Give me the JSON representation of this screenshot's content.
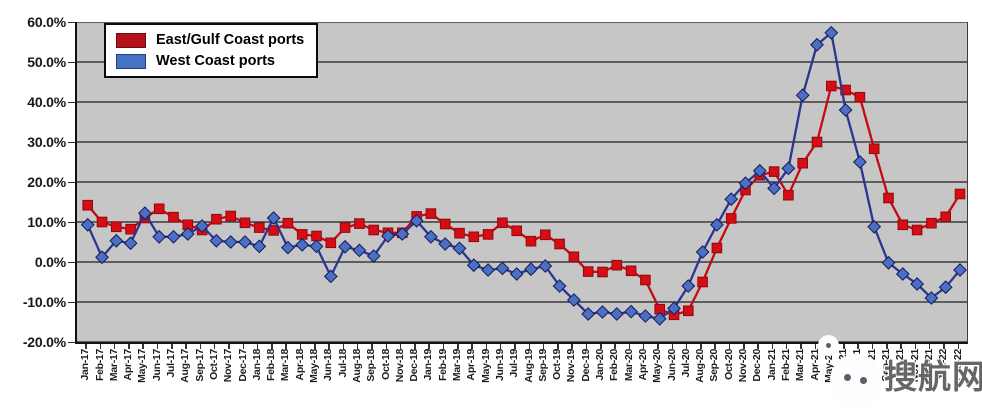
{
  "chart_data": {
    "type": "line",
    "title": "",
    "xlabel": "",
    "ylabel": "",
    "ylim": [
      -20,
      60
    ],
    "grid": true,
    "legend_position": "top-left",
    "y_ticks": [
      "60.0%",
      "50.0%",
      "40.0%",
      "30.0%",
      "20.0%",
      "10.0%",
      "0.0%",
      "-10.0%",
      "-20.0%"
    ],
    "categories": [
      "Jan-17",
      "Feb-17",
      "Mar-17",
      "Apr-17",
      "May-17",
      "Jun-17",
      "Jul-17",
      "Aug-17",
      "Sep-17",
      "Oct-17",
      "Nov-17",
      "Dec-17",
      "Jan-18",
      "Feb-18",
      "Mar-18",
      "Apr-18",
      "May-18",
      "Jun-18",
      "Jul-18",
      "Aug-18",
      "Sep-18",
      "Oct-18",
      "Nov-18",
      "Dec-18",
      "Jan-19",
      "Feb-19",
      "Mar-19",
      "Apr-19",
      "May-19",
      "Jun-19",
      "Jul-19",
      "Aug-19",
      "Sep-19",
      "Oct-19",
      "Nov-19",
      "Dec-19",
      "Jan-20",
      "Feb-20",
      "Mar-20",
      "Apr-20",
      "May-20",
      "Jun-20",
      "Jul-20",
      "Aug-20",
      "Sep-20",
      "Oct-20",
      "Nov-20",
      "Dec-20",
      "Jan-21",
      "Feb-21",
      "Mar-21",
      "Apr-21",
      "May-21",
      "Jun-21",
      "Jul-21",
      "Aug-21",
      "Sep-21",
      "Oct-21",
      "Nov-21",
      "Dec-21",
      "Jan-22",
      "Feb-22"
    ],
    "series": [
      {
        "name": "East/Gulf Coast ports",
        "marker": "square",
        "line_color": "#c40a14",
        "marker_fill": "#d60d15",
        "marker_stroke": "#8e0a0f",
        "values": [
          14.2,
          10.0,
          8.8,
          8.2,
          11.0,
          13.3,
          11.2,
          9.3,
          8.0,
          10.7,
          11.5,
          9.8,
          8.6,
          7.9,
          9.7,
          6.9,
          6.5,
          4.8,
          8.6,
          9.6,
          8.0,
          7.3,
          7.3,
          11.4,
          12.1,
          9.5,
          7.2,
          6.3,
          6.9,
          9.8,
          7.8,
          5.2,
          6.8,
          4.5,
          1.3,
          -2.4,
          -2.5,
          -0.8,
          -2.2,
          -4.5,
          -11.8,
          -13.2,
          -12.2,
          -5.0,
          3.5,
          10.9,
          18.0,
          21.7,
          22.6,
          16.7,
          24.7,
          30.0,
          44.0,
          43.0,
          41.2,
          28.3,
          16.0,
          9.3,
          8.0,
          9.7,
          11.3,
          17.0
        ]
      },
      {
        "name": "West Coast ports",
        "marker": "diamond",
        "line_color": "#2b3691",
        "marker_fill": "#4a6fc4",
        "marker_stroke": "#141a55",
        "values": [
          9.3,
          1.2,
          5.3,
          4.7,
          12.2,
          6.3,
          6.3,
          7.0,
          9.0,
          5.3,
          5.0,
          5.0,
          3.9,
          11.0,
          3.6,
          4.3,
          3.9,
          -3.6,
          3.8,
          2.9,
          1.5,
          6.5,
          7.0,
          10.3,
          6.3,
          4.5,
          3.4,
          -0.8,
          -2.0,
          -1.6,
          -3.0,
          -1.8,
          -1.0,
          -6.0,
          -9.5,
          -13.0,
          -12.5,
          -13.0,
          -12.4,
          -13.5,
          -14.2,
          -11.6,
          -6.0,
          2.5,
          9.3,
          15.7,
          19.7,
          22.8,
          18.4,
          23.4,
          41.7,
          54.3,
          57.3,
          38.0,
          25.0,
          8.8,
          -0.2,
          -3.0,
          -5.5,
          -9.0,
          -6.3,
          -2.0
        ]
      }
    ]
  },
  "legend": {
    "east_label": "East/Gulf Coast ports",
    "west_label": "West Coast ports"
  },
  "watermark": {
    "text": "搜航网"
  }
}
